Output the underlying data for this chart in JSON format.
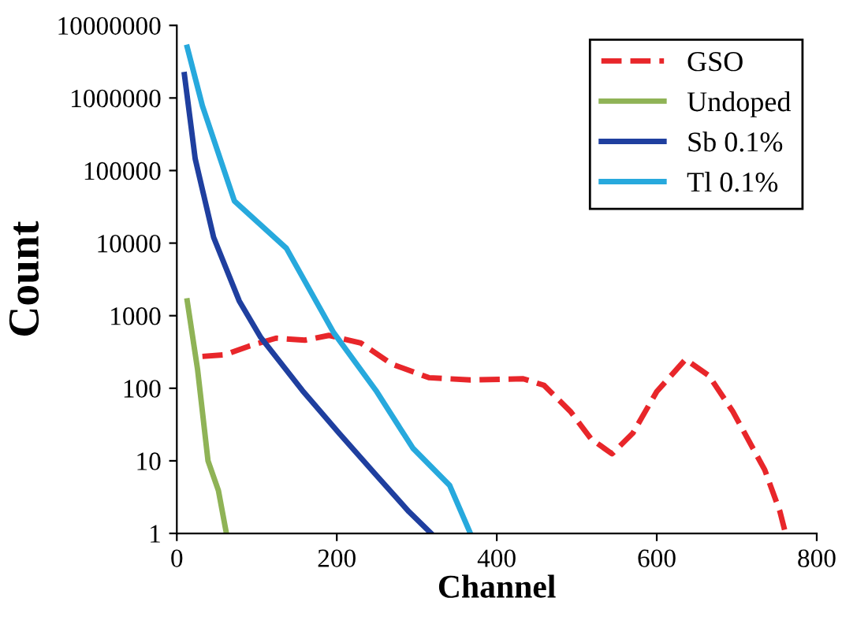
{
  "chart_data": {
    "type": "line",
    "xlabel": "Channel",
    "ylabel": "Count",
    "log": "y",
    "xlim": [
      0,
      800
    ],
    "xticks": [
      0,
      200,
      400,
      600,
      800
    ],
    "ylim": [
      1,
      10000000
    ],
    "yticks": [
      1,
      10,
      100,
      1000,
      10000,
      100000,
      1000000,
      10000000
    ],
    "grid": false,
    "legend": "top right",
    "marker": "none",
    "series": [
      {
        "name": "GSO",
        "color": "#e8262a",
        "line_style": "dashed",
        "x": [
          32,
          60,
          90,
          124,
          160,
          190,
          230,
          269,
          315,
          367,
          433,
          459,
          492,
          518,
          544,
          570,
          600,
          636,
          665,
          695,
          735,
          754,
          761
        ],
        "values": [
          275,
          290,
          380,
          490,
          460,
          535,
          420,
          215,
          140,
          130,
          135,
          110,
          48,
          20,
          12.5,
          24,
          90,
          250,
          150,
          48,
          7.5,
          2,
          1
        ]
      },
      {
        "name": "Undoped",
        "color": "#8fb356",
        "line_style": "solid",
        "x": [
          13,
          26,
          39,
          52,
          62
        ],
        "values": [
          1600,
          180,
          10,
          3.9,
          1
        ]
      },
      {
        "name": "Sb 0.1%",
        "color": "#1f3f9f",
        "line_style": "solid",
        "x": [
          9.5,
          23,
          46,
          78,
          105,
          157,
          203,
          249,
          290,
          318
        ],
        "values": [
          2100000,
          145000,
          12000,
          1600,
          500,
          93,
          24,
          6.4,
          2,
          1
        ]
      },
      {
        "name": "Tl 0.1%",
        "color": "#27a9dd",
        "line_style": "solid",
        "x": [
          13,
          32,
          72,
          137,
          196,
          249,
          295,
          341,
          367
        ],
        "values": [
          5000000,
          780000,
          38000,
          8500,
          585,
          93,
          15,
          4.6,
          1
        ]
      }
    ]
  }
}
